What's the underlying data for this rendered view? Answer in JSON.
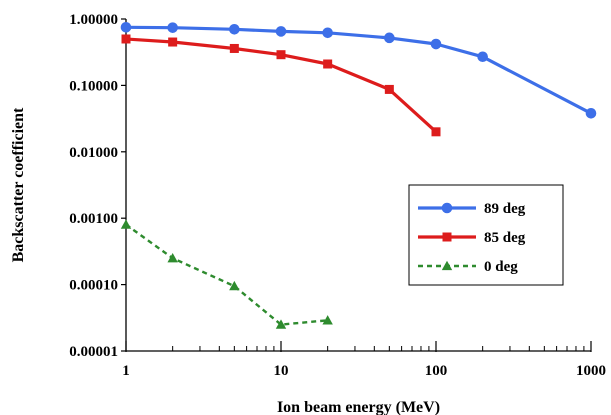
{
  "chart_data": {
    "type": "line",
    "title": "",
    "xlabel": "Ion beam energy (MeV)",
    "ylabel": "Backscatter coefficient",
    "xscale": "log",
    "yscale": "log",
    "xlim": [
      1,
      1000
    ],
    "ylim": [
      1e-05,
      1
    ],
    "x_ticks": [
      1,
      10,
      100,
      1000
    ],
    "x_tick_labels": [
      "1",
      "10",
      "100",
      "1000"
    ],
    "y_ticks": [
      1,
      0.1,
      0.01,
      0.001,
      0.0001,
      1e-05
    ],
    "y_tick_labels": [
      "1.00000",
      "0.10000",
      "0.01000",
      "0.00100",
      "0.00010",
      "0.00001"
    ],
    "grid": false,
    "legend_position": "right",
    "series": [
      {
        "name": "89 deg",
        "color": "#3d6fe8",
        "marker": "circle",
        "line_style": "solid",
        "points": [
          [
            1,
            0.75
          ],
          [
            2,
            0.74
          ],
          [
            5,
            0.7
          ],
          [
            10,
            0.65
          ],
          [
            20,
            0.62
          ],
          [
            50,
            0.52
          ],
          [
            100,
            0.42
          ],
          [
            200,
            0.27
          ],
          [
            1000,
            0.038
          ]
        ]
      },
      {
        "name": "85 deg",
        "color": "#dd1c1c",
        "marker": "square",
        "line_style": "solid",
        "points": [
          [
            1,
            0.5
          ],
          [
            2,
            0.45
          ],
          [
            5,
            0.36
          ],
          [
            10,
            0.29
          ],
          [
            20,
            0.21
          ],
          [
            50,
            0.087
          ],
          [
            100,
            0.02
          ]
        ]
      },
      {
        "name": "0 deg",
        "color": "#2e8b2e",
        "marker": "triangle",
        "line_style": "dashed",
        "points": [
          [
            1,
            0.0008
          ],
          [
            2,
            0.00025
          ],
          [
            5,
            9.5e-05
          ],
          [
            10,
            2.5e-05
          ],
          [
            20,
            2.9e-05
          ]
        ]
      }
    ]
  }
}
